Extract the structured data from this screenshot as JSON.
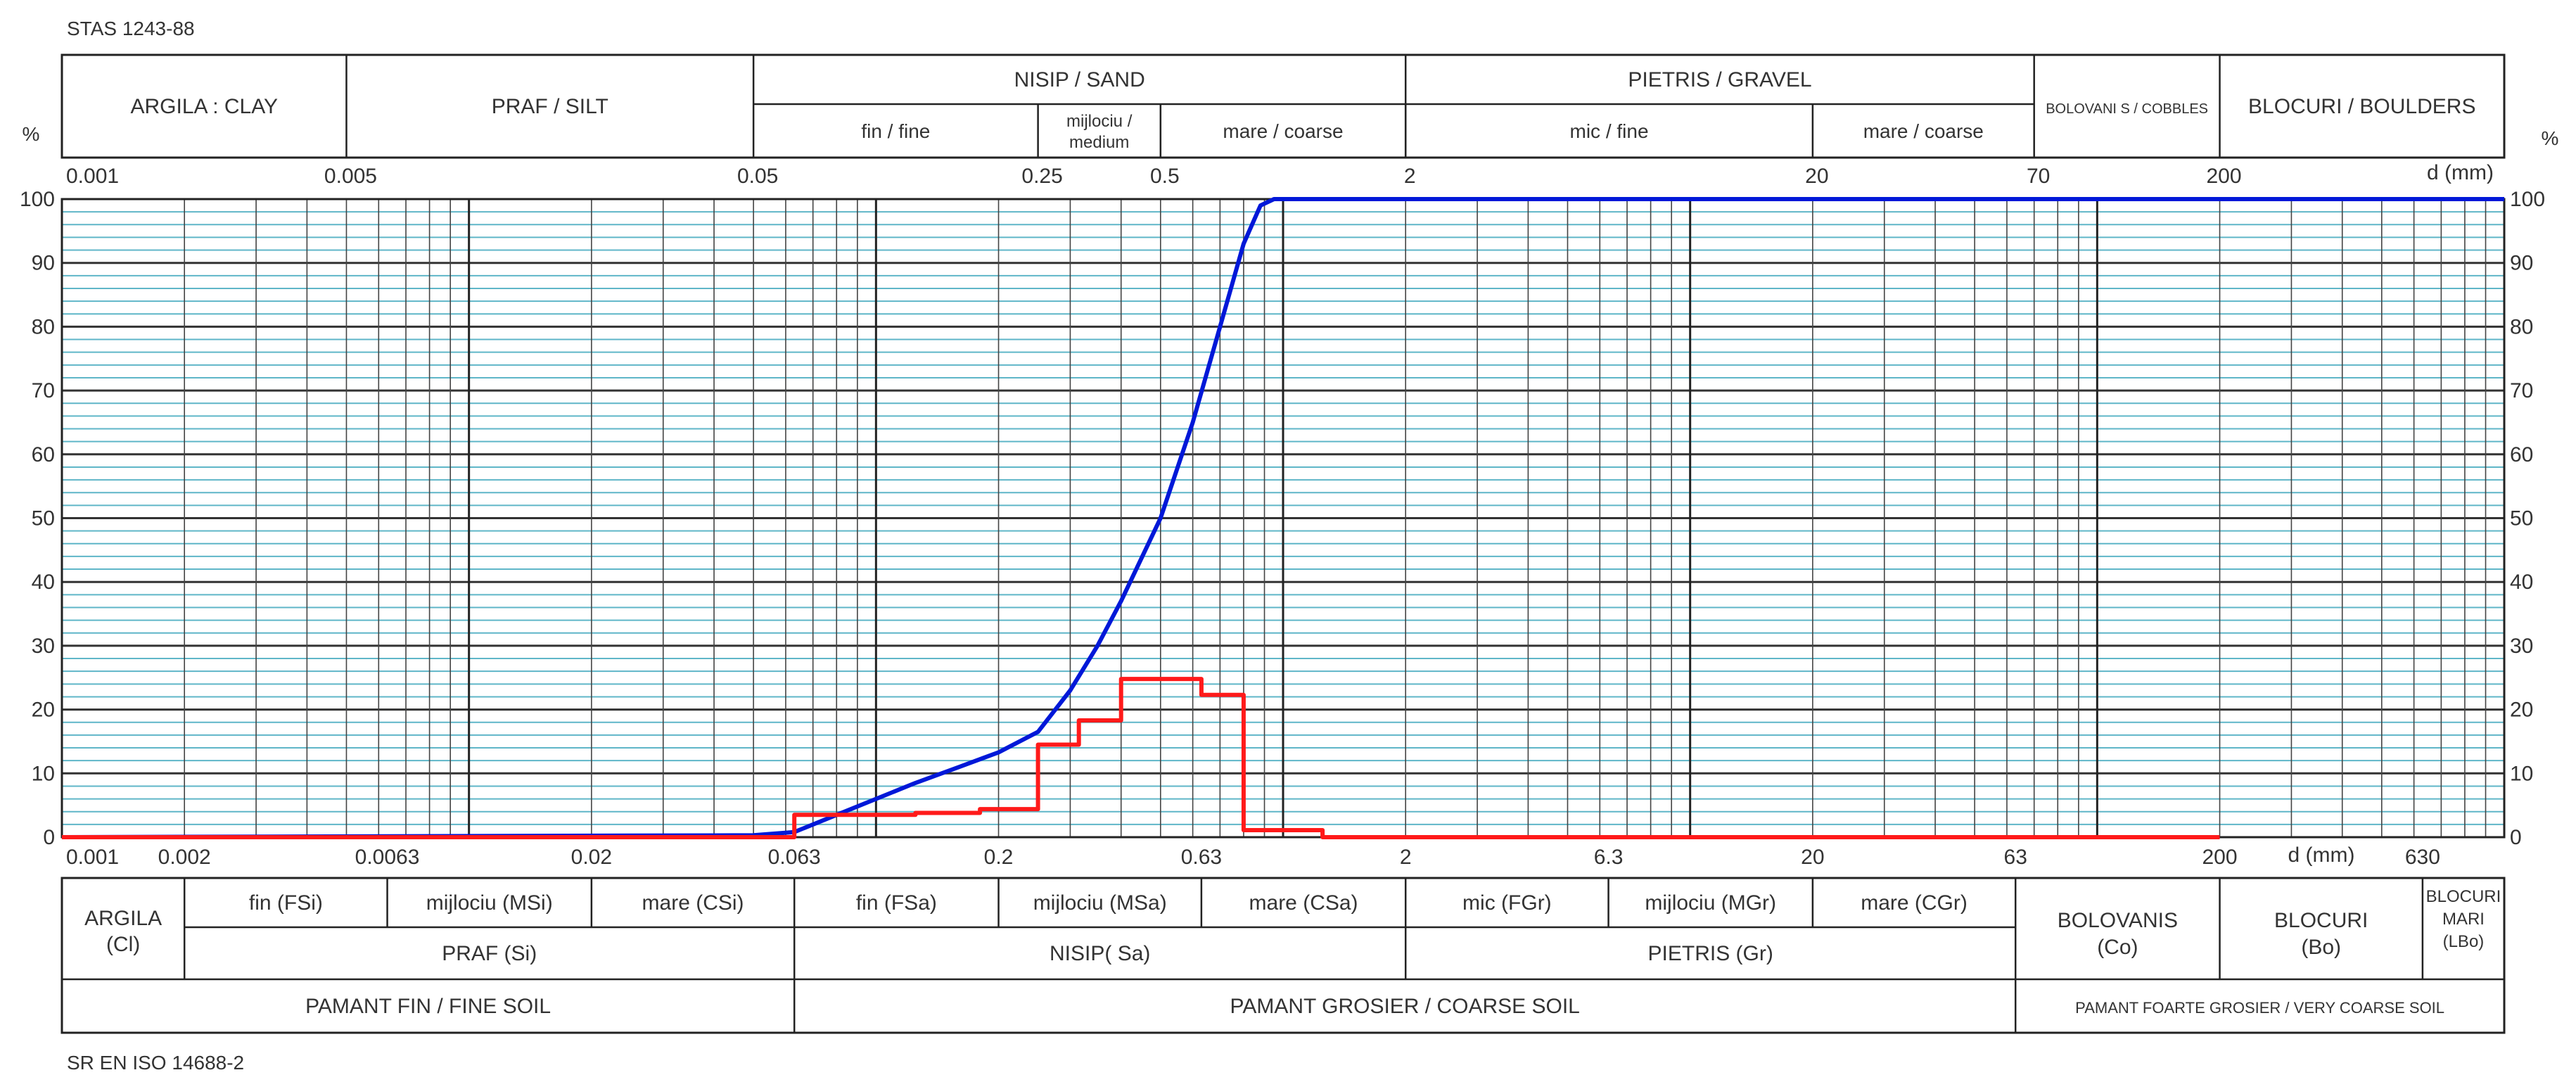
{
  "top_standard": "STAS 1243-88",
  "bottom_standard": "SR EN ISO 14688-2",
  "percent_sign": "%",
  "top_table": {
    "row1": [
      {
        "key": "clay",
        "label": "ARGILA : CLAY",
        "from": 0.001,
        "to": 0.005
      },
      {
        "key": "silt",
        "label": "PRAF / SILT",
        "from": 0.005,
        "to": 0.05
      },
      {
        "key": "sand",
        "label": "NISIP / SAND",
        "from": 0.05,
        "to": 2
      },
      {
        "key": "gravel",
        "label": "PIETRIS / GRAVEL",
        "from": 2,
        "to": 70
      },
      {
        "key": "cobbles",
        "label": "BOLOVANI S / COBBLES",
        "from": 70,
        "to": 200
      },
      {
        "key": "boulders",
        "label": "BLOCURI / BOULDERS",
        "from": 200,
        "to": 1000
      }
    ],
    "row2": [
      {
        "key": "sand-fine",
        "label": "fin / fine",
        "from": 0.05,
        "to": 0.25
      },
      {
        "key": "sand-medium",
        "label": "mijlociu / medium",
        "from": 0.25,
        "to": 0.5
      },
      {
        "key": "sand-coarse",
        "label": "mare / coarse",
        "from": 0.5,
        "to": 2
      },
      {
        "key": "gravel-fine",
        "label": "mic / fine",
        "from": 2,
        "to": 20
      },
      {
        "key": "gravel-coarse",
        "label": "mare / coarse",
        "from": 20,
        "to": 70
      }
    ]
  },
  "bottom_table": {
    "argila": {
      "label": "ARGILA (Cl)",
      "from": 0.001,
      "to": 0.002
    },
    "sub": [
      {
        "key": "fsi",
        "label": "fin (FSi)",
        "from": 0.002,
        "to": 0.0063
      },
      {
        "key": "msi",
        "label": "mijlociu (MSi)",
        "from": 0.0063,
        "to": 0.02
      },
      {
        "key": "csi",
        "label": "mare (CSi)",
        "from": 0.02,
        "to": 0.063
      },
      {
        "key": "fsa",
        "label": "fin (FSa)",
        "from": 0.063,
        "to": 0.2
      },
      {
        "key": "msa",
        "label": "mijlociu (MSa)",
        "from": 0.2,
        "to": 0.63
      },
      {
        "key": "csa",
        "label": "mare (CSa)",
        "from": 0.63,
        "to": 2
      },
      {
        "key": "fgr",
        "label": "mic (FGr)",
        "from": 2,
        "to": 6.3
      },
      {
        "key": "mgr",
        "label": "mijlociu (MGr)",
        "from": 6.3,
        "to": 20
      },
      {
        "key": "cgr",
        "label": "mare (CGr)",
        "from": 20,
        "to": 63
      }
    ],
    "main": [
      {
        "key": "praf",
        "label": "PRAF (Si)",
        "from": 0.002,
        "to": 0.063
      },
      {
        "key": "nisip",
        "label": "NISIP( Sa)",
        "from": 0.063,
        "to": 2
      },
      {
        "key": "pietris",
        "label": "PIETRIS (Gr)",
        "from": 2,
        "to": 63
      }
    ],
    "tall": [
      {
        "key": "bolovanis",
        "label": "BOLOVANIS (Co)",
        "from": 63,
        "to": 200
      },
      {
        "key": "blocuri",
        "label": "BLOCURI (Bo)",
        "from": 200,
        "to": 630
      },
      {
        "key": "blocuri-mari",
        "label": "BLOCURI MARI (LBo)",
        "from": 630,
        "to": 1000
      }
    ],
    "soils": [
      {
        "key": "fine-soil",
        "label": "PAMANT FIN / FINE SOIL",
        "from": 0.001,
        "to": 0.063
      },
      {
        "key": "coarse-soil",
        "label": "PAMANT GROSIER / COARSE SOIL",
        "from": 0.063,
        "to": 63
      },
      {
        "key": "very-coarse-soil",
        "label": "PAMANT FOARTE GROSIER / VERY COARSE SOIL",
        "from": 63,
        "to": 1000
      }
    ]
  },
  "chart_data": {
    "type": "line",
    "xscale": "log",
    "xlim": [
      0.001,
      1000
    ],
    "ylim": [
      0,
      100
    ],
    "grid": true,
    "x_unit_label": "d (mm)",
    "top_ticks": [
      {
        "value": 0.001,
        "label": "0.001"
      },
      {
        "value": 0.005,
        "label": "0.005"
      },
      {
        "value": 0.05,
        "label": "0.05"
      },
      {
        "value": 0.25,
        "label": "0.25"
      },
      {
        "value": 0.5,
        "label": "0.5"
      },
      {
        "value": 2,
        "label": "2"
      },
      {
        "value": 20,
        "label": "20"
      },
      {
        "value": 70,
        "label": "70"
      },
      {
        "value": 200,
        "label": "200"
      }
    ],
    "bottom_ticks": [
      {
        "value": 0.001,
        "label": "0.001"
      },
      {
        "value": 0.002,
        "label": "0.002"
      },
      {
        "value": 0.0063,
        "label": "0.0063"
      },
      {
        "value": 0.02,
        "label": "0.02"
      },
      {
        "value": 0.063,
        "label": "0.063"
      },
      {
        "value": 0.2,
        "label": "0.2"
      },
      {
        "value": 0.63,
        "label": "0.63"
      },
      {
        "value": 2,
        "label": "2"
      },
      {
        "value": 6.3,
        "label": "6.3"
      },
      {
        "value": 20,
        "label": "20"
      },
      {
        "value": 63,
        "label": "63"
      },
      {
        "value": 200,
        "label": "200"
      },
      {
        "value": 630,
        "label": "630"
      }
    ],
    "y_ticks": [
      0,
      10,
      20,
      30,
      40,
      50,
      60,
      70,
      80,
      90,
      100
    ],
    "series": [
      {
        "kind": "cumulative",
        "color": "#0018d8",
        "points": [
          [
            0.001,
            0
          ],
          [
            0.05,
            0.3
          ],
          [
            0.063,
            0.8
          ],
          [
            0.08,
            3.5
          ],
          [
            0.1,
            6
          ],
          [
            0.125,
            8.5
          ],
          [
            0.16,
            11
          ],
          [
            0.2,
            13.3
          ],
          [
            0.25,
            16.5
          ],
          [
            0.3,
            23
          ],
          [
            0.35,
            30
          ],
          [
            0.4,
            37
          ],
          [
            0.5,
            50
          ],
          [
            0.6,
            65
          ],
          [
            0.7,
            80
          ],
          [
            0.8,
            93
          ],
          [
            0.88,
            99
          ],
          [
            0.95,
            100
          ],
          [
            1000,
            100
          ]
        ]
      },
      {
        "kind": "fraction-step",
        "color": "#ff1a1a",
        "steps": [
          [
            0.001,
            0
          ],
          [
            0.063,
            0
          ],
          [
            0.063,
            3.5
          ],
          [
            0.125,
            3.5
          ],
          [
            0.125,
            3.8
          ],
          [
            0.18,
            3.8
          ],
          [
            0.18,
            4.4
          ],
          [
            0.25,
            4.4
          ],
          [
            0.25,
            14.5
          ],
          [
            0.315,
            14.5
          ],
          [
            0.315,
            18.3
          ],
          [
            0.4,
            18.3
          ],
          [
            0.4,
            24.8
          ],
          [
            0.63,
            24.8
          ],
          [
            0.63,
            22.3
          ],
          [
            0.8,
            22.3
          ],
          [
            0.8,
            1.1
          ],
          [
            1.25,
            1.1
          ],
          [
            1.25,
            0
          ],
          [
            200,
            0
          ]
        ]
      }
    ]
  }
}
